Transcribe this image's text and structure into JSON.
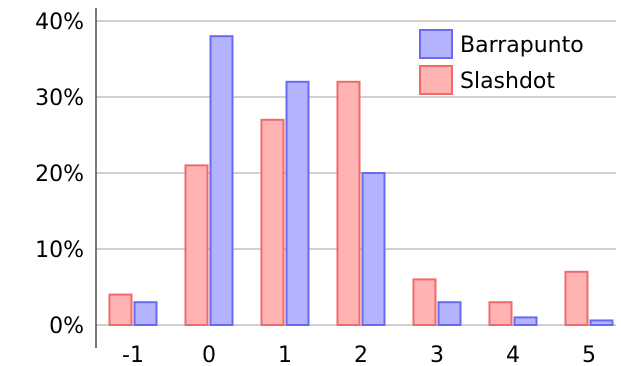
{
  "chart_data": {
    "type": "bar",
    "categories": [
      "-1",
      "0",
      "1",
      "2",
      "3",
      "4",
      "5"
    ],
    "series": [
      {
        "name": "Slashdot",
        "values": [
          4,
          21,
          27,
          32,
          6,
          3,
          7
        ],
        "fill": "#ffb3b3",
        "stroke": "#f06a6a"
      },
      {
        "name": "Barrapunto",
        "values": [
          3,
          38,
          32,
          20,
          3,
          1,
          0.6
        ],
        "fill": "#b3b3ff",
        "stroke": "#6a6af0"
      }
    ],
    "title": "",
    "xlabel": "",
    "ylabel": "",
    "ylim": [
      0,
      40
    ],
    "yticks": [
      0,
      10,
      20,
      30,
      40
    ],
    "ytick_labels": [
      "0%",
      "10%",
      "20%",
      "30%",
      "40%"
    ],
    "grid": "horizontal",
    "grid_color": "#a0a0a0",
    "legend_position": "top-right",
    "legend_order": [
      "Barrapunto",
      "Slashdot"
    ]
  }
}
